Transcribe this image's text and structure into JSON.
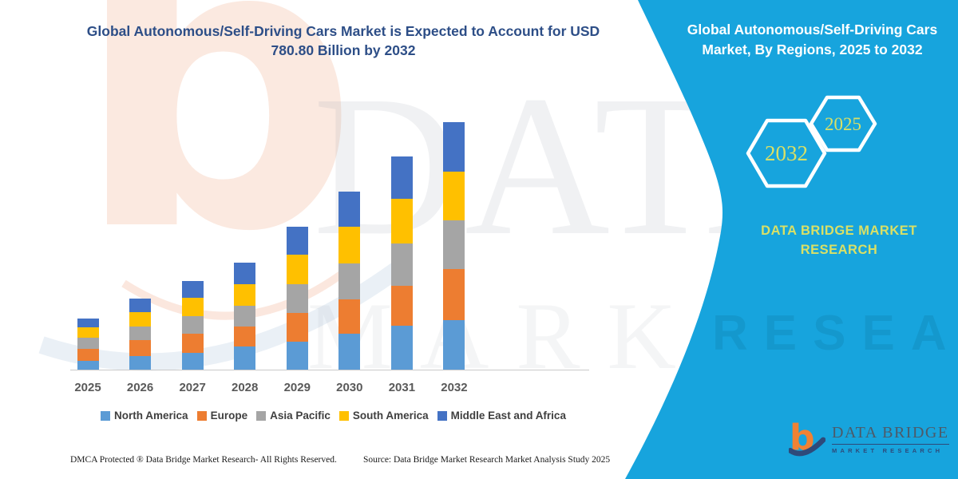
{
  "header": {
    "title_line1": "Global Autonomous/Self-Driving Cars Market is Expected to Account for USD",
    "title_line2": "780.80 Billion by 2032"
  },
  "chart_data": {
    "type": "bar",
    "stacked": true,
    "unit": "USD Billion",
    "title": "Global Autonomous/Self-Driving Cars Market is Expected to Account for USD 780.80 Billion by 2032",
    "highlight_value": "780.80",
    "categories": [
      "2025",
      "2026",
      "2027",
      "2028",
      "2029",
      "2030",
      "2031",
      "2032"
    ],
    "series": [
      {
        "name": "North America",
        "color": "#5B9BD5",
        "values": [
          27.8,
          42.9,
          53.0,
          72.4,
          88.3,
          113.6,
          138.0,
          155.7
        ]
      },
      {
        "name": "Europe",
        "color": "#ED7D31",
        "values": [
          37.9,
          50.5,
          61.3,
          63.1,
          90.8,
          109.3,
          126.2,
          160.7
        ]
      },
      {
        "name": "Asia Pacific",
        "color": "#A5A5A5",
        "values": [
          36.3,
          43.7,
          54.8,
          64.9,
          90.8,
          111.0,
          134.5,
          154.7
        ]
      },
      {
        "name": "South America",
        "color": "#FFC000",
        "values": [
          31.0,
          43.7,
          58.0,
          69.9,
          91.6,
          117.9,
          139.6,
          153.9
        ]
      },
      {
        "name": "Middle East and Africa",
        "color": "#4472C4",
        "values": [
          29.5,
          44.7,
          53.0,
          67.4,
          88.3,
          109.3,
          134.8,
          155.8
        ]
      }
    ],
    "estimated_totals": [
      162.5,
      225.5,
      280.1,
      337.7,
      449.8,
      561.1,
      673.1,
      780.8
    ],
    "ylim": [
      0,
      800
    ],
    "xlabel": "",
    "ylabel": "",
    "grid": false,
    "legend_position": "bottom"
  },
  "panel": {
    "bg_color": "#17A4DD",
    "accent_color": "#D9E066",
    "title_line1": "Global Autonomous/Self-Driving Cars",
    "title_line2": "Market, By Regions, 2025 to 2032",
    "hex_large_label": "2032",
    "hex_small_label": "2025",
    "brand_line1": "DATA BRIDGE MARKET",
    "brand_line2": "RESEARCH",
    "watermark": "RESEARCH"
  },
  "logo": {
    "brand": "DATA BRIDGE",
    "sub": "MARKET RESEARCH"
  },
  "footer": {
    "left": "DMCA Protected ® Data Bridge Market Research-  All Rights Reserved.",
    "source": "Source: Data Bridge Market Research  Market Analysis Study 2025"
  },
  "watermarks": {
    "big_letter": "b",
    "word1": "DATAB",
    "word2": "MARKET"
  }
}
